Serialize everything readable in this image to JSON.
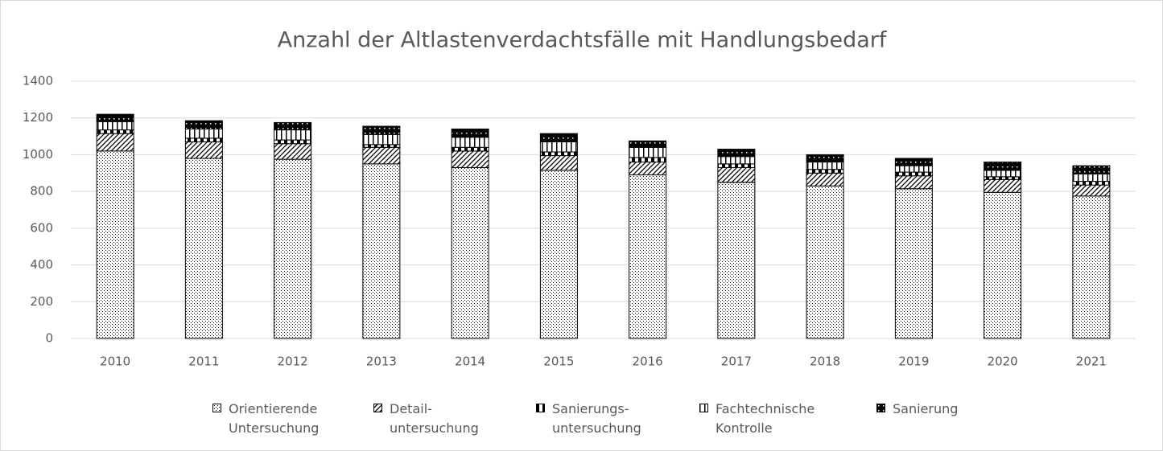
{
  "chart_data": {
    "type": "stacked_bar",
    "title": "Anzahl der Altlastenverdachtsfälle mit Handlungsbedarf",
    "categories": [
      "2010",
      "2011",
      "2012",
      "2013",
      "2014",
      "2015",
      "2016",
      "2017",
      "2018",
      "2019",
      "2020",
      "2021"
    ],
    "series": [
      {
        "name": "Orientierende\nUntersuchung",
        "pattern": "dots",
        "values": [
          1020,
          980,
          975,
          950,
          930,
          915,
          890,
          850,
          830,
          815,
          795,
          775
        ]
      },
      {
        "name": "Detail-\nuntersuchung",
        "pattern": "hatch",
        "values": [
          95,
          90,
          85,
          90,
          90,
          80,
          70,
          80,
          70,
          70,
          70,
          60
        ]
      },
      {
        "name": "Sanierungs-\nuntersuchung",
        "pattern": "half",
        "values": [
          20,
          20,
          20,
          15,
          20,
          20,
          25,
          20,
          20,
          20,
          15,
          20
        ]
      },
      {
        "name": "Fachtechnische\nKontrolle",
        "pattern": "vlines",
        "values": [
          45,
          50,
          55,
          55,
          55,
          55,
          55,
          40,
          40,
          35,
          35,
          40
        ]
      },
      {
        "name": "Sanierung",
        "pattern": "black",
        "values": [
          40,
          45,
          40,
          45,
          45,
          45,
          35,
          40,
          40,
          40,
          45,
          45
        ]
      }
    ],
    "ylim": [
      0,
      1400
    ],
    "yticks": [
      0,
      200,
      400,
      600,
      800,
      1000,
      1200,
      1400
    ],
    "grid": true
  }
}
